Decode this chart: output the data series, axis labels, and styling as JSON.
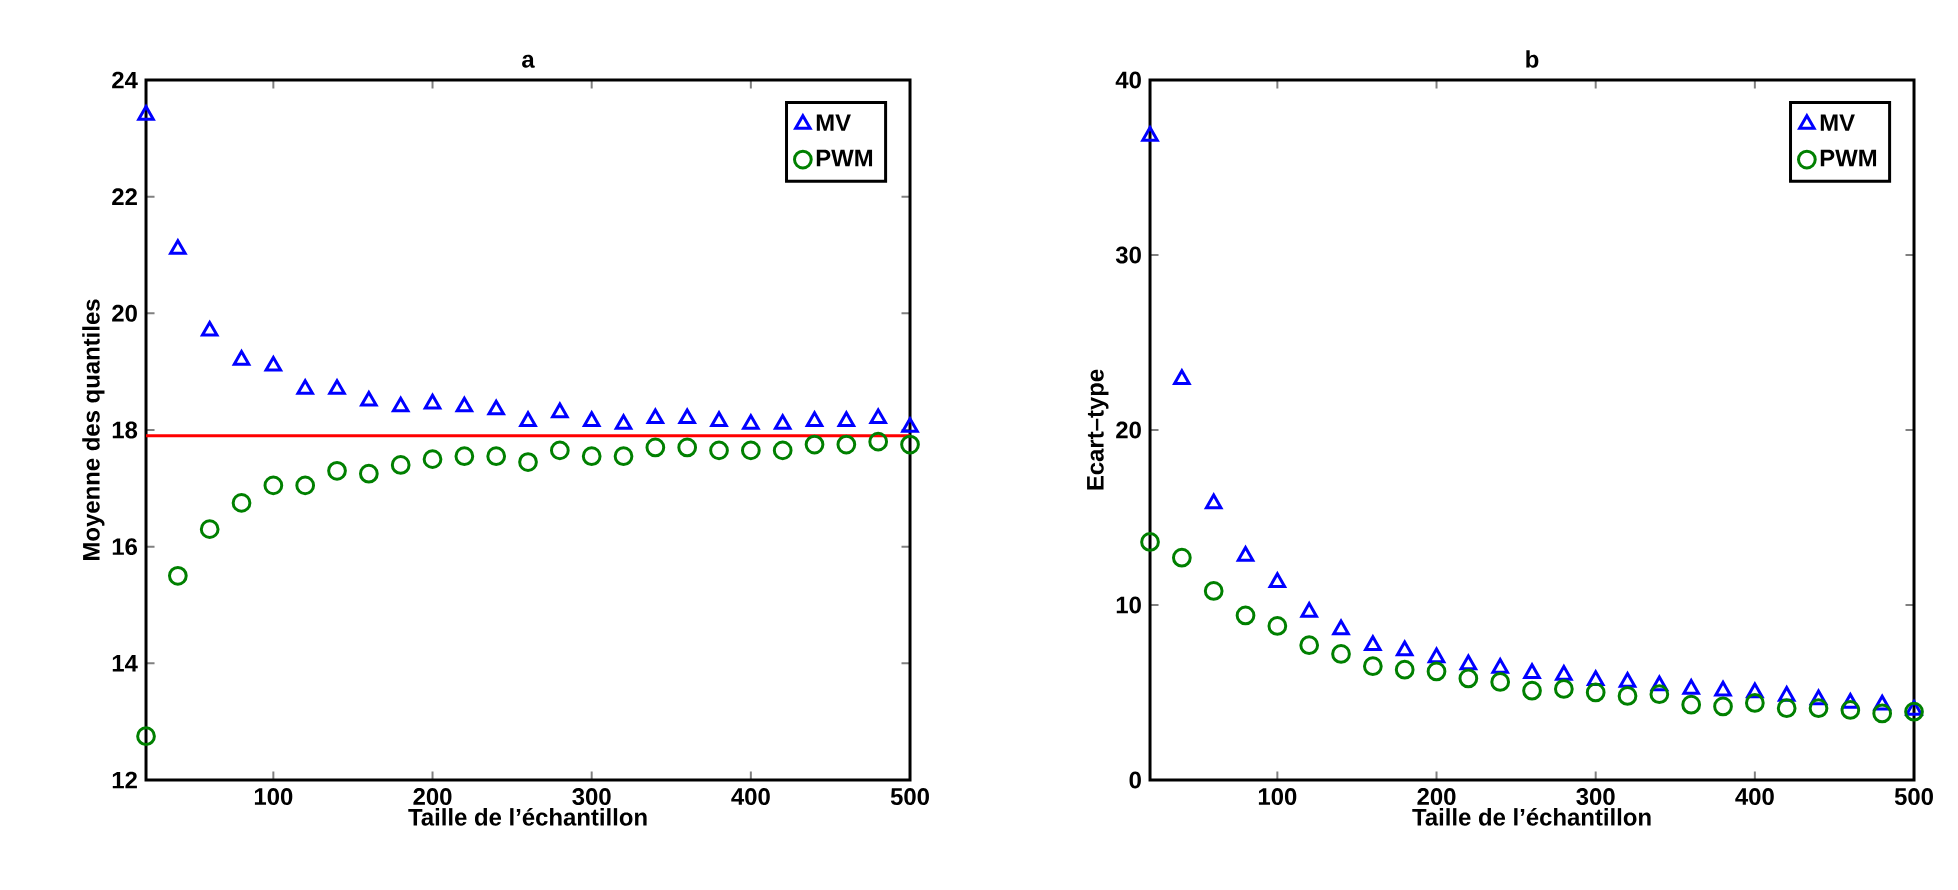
{
  "chart_data": [
    {
      "type": "scatter",
      "title": "a",
      "xlabel": "Taille de l’échantillon",
      "ylabel": "Moyenne des quantiles",
      "x": [
        20,
        40,
        60,
        80,
        100,
        120,
        140,
        160,
        180,
        200,
        220,
        240,
        260,
        280,
        300,
        320,
        340,
        360,
        380,
        400,
        420,
        440,
        460,
        480,
        500
      ],
      "xlim": [
        20,
        500
      ],
      "xticks": [
        100,
        200,
        300,
        400,
        500
      ],
      "ylim": [
        12,
        24
      ],
      "yticks": [
        12,
        14,
        16,
        18,
        20,
        22,
        24
      ],
      "legend": "top right",
      "series": [
        {
          "name": "MV",
          "color": "#0000ff",
          "marker": "triangle",
          "values": [
            23.4,
            21.1,
            19.7,
            19.2,
            19.1,
            18.7,
            18.7,
            18.5,
            18.4,
            18.45,
            18.4,
            18.35,
            18.15,
            18.3,
            18.15,
            18.1,
            18.2,
            18.2,
            18.15,
            18.1,
            18.1,
            18.15,
            18.15,
            18.2,
            18.05
          ]
        },
        {
          "name": "PWM",
          "color": "#008000",
          "marker": "circle",
          "values": [
            12.75,
            15.5,
            16.3,
            16.75,
            17.05,
            17.05,
            17.3,
            17.25,
            17.4,
            17.5,
            17.55,
            17.55,
            17.45,
            17.65,
            17.55,
            17.55,
            17.7,
            17.7,
            17.65,
            17.65,
            17.65,
            17.75,
            17.75,
            17.8,
            17.75
          ]
        }
      ],
      "ref_lines": [
        {
          "axis": "y",
          "value": 17.9,
          "color": "#ff0000"
        }
      ]
    },
    {
      "type": "scatter",
      "title": "b",
      "xlabel": "Taille de l’échantillon",
      "ylabel": "Ecart–type",
      "x": [
        20,
        40,
        60,
        80,
        100,
        120,
        140,
        160,
        180,
        200,
        220,
        240,
        260,
        280,
        300,
        320,
        340,
        360,
        380,
        400,
        420,
        440,
        460,
        480,
        500
      ],
      "xlim": [
        20,
        500
      ],
      "xticks": [
        100,
        200,
        300,
        400,
        500
      ],
      "ylim": [
        0,
        40
      ],
      "yticks": [
        0,
        10,
        20,
        30,
        40
      ],
      "legend": "top right",
      "series": [
        {
          "name": "MV",
          "color": "#0000ff",
          "marker": "triangle",
          "values": [
            36.8,
            22.9,
            15.8,
            12.8,
            11.3,
            9.6,
            8.6,
            7.7,
            7.4,
            7.0,
            6.6,
            6.4,
            6.1,
            6.0,
            5.7,
            5.6,
            5.4,
            5.2,
            5.1,
            5.0,
            4.8,
            4.6,
            4.4,
            4.3,
            4.0
          ]
        },
        {
          "name": "PWM",
          "color": "#008000",
          "marker": "circle",
          "values": [
            13.6,
            12.7,
            10.8,
            9.4,
            8.8,
            7.7,
            7.2,
            6.5,
            6.3,
            6.2,
            5.8,
            5.6,
            5.1,
            5.2,
            5.0,
            4.8,
            4.9,
            4.3,
            4.2,
            4.4,
            4.1,
            4.1,
            4.0,
            3.8,
            3.9
          ]
        }
      ]
    }
  ]
}
